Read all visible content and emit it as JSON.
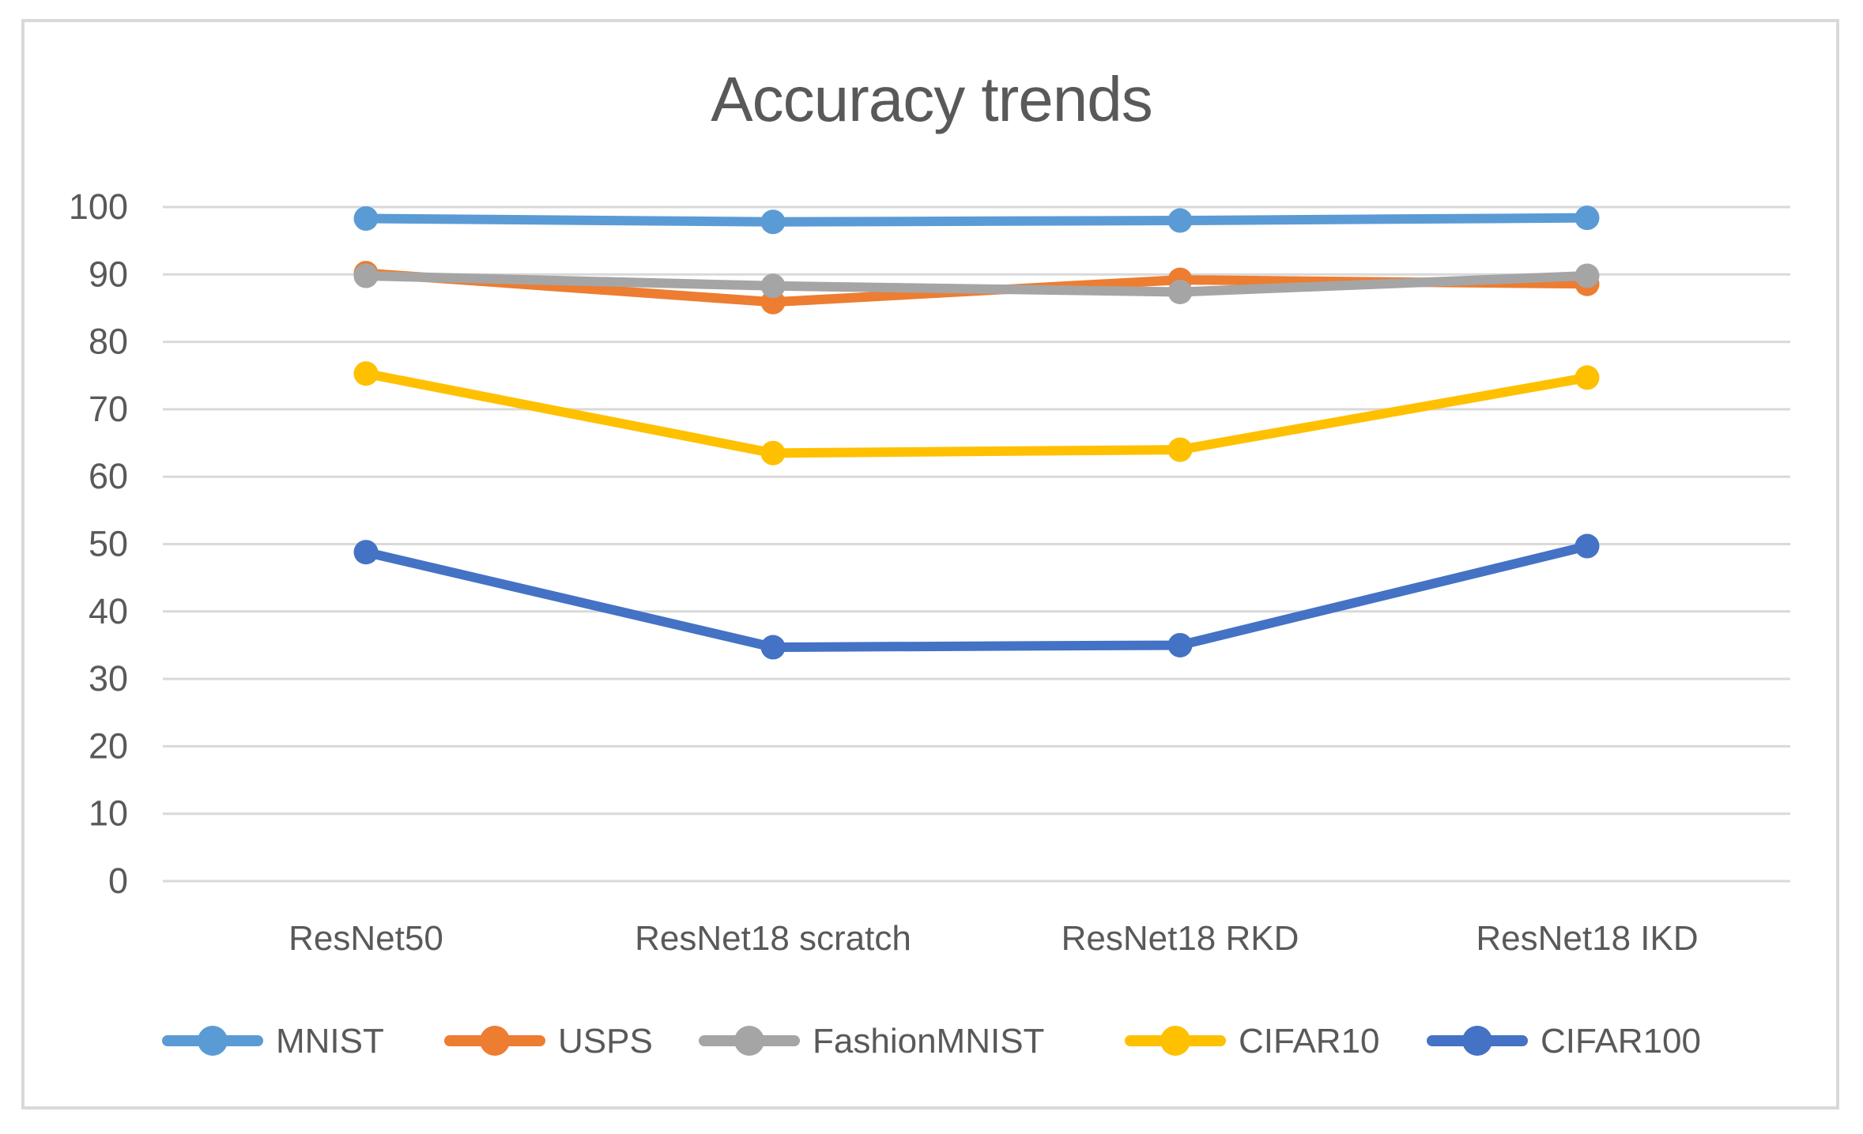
{
  "figure": {
    "background": "#FFFFFF",
    "border_color": "#D9D9D9"
  },
  "chart_data": {
    "type": "line",
    "title": "Accuracy trends",
    "xlabel": "",
    "ylabel": "",
    "categories": [
      "ResNet50",
      "ResNet18 scratch",
      "ResNet18 RKD",
      "ResNet18 IKD"
    ],
    "series": [
      {
        "name": "MNIST",
        "color": "#5B9BD5",
        "values": [
          98.3,
          97.8,
          98.0,
          98.4
        ]
      },
      {
        "name": "USPS",
        "color": "#ED7D31",
        "values": [
          90.2,
          85.9,
          89.2,
          88.6
        ]
      },
      {
        "name": "FashionMNIST",
        "color": "#A5A5A5",
        "values": [
          89.8,
          88.3,
          87.4,
          89.8
        ]
      },
      {
        "name": "CIFAR10",
        "color": "#FFC000",
        "values": [
          75.3,
          63.5,
          64.0,
          74.7
        ]
      },
      {
        "name": "CIFAR100",
        "color": "#4472C4",
        "values": [
          48.8,
          34.7,
          35.0,
          49.7
        ]
      }
    ],
    "ylim": [
      0,
      100
    ],
    "ytick_step": 10,
    "ytick_labels": [
      "0",
      "10",
      "20",
      "30",
      "40",
      "50",
      "60",
      "70",
      "80",
      "90",
      "100"
    ],
    "grid": true,
    "gridline_color": "#D9D9D9",
    "text_color": "#595959",
    "legend_position": "bottom",
    "marker_style": "circle"
  }
}
